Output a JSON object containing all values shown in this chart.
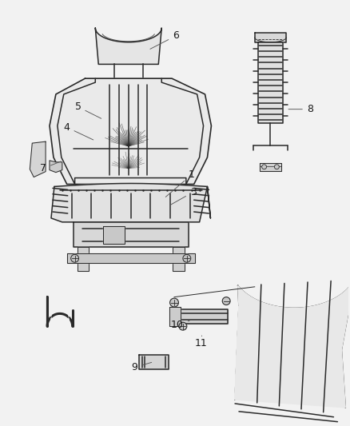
{
  "bg_color": "#f2f2f2",
  "line_color": "#2a2a2a",
  "label_color": "#1a1a1a",
  "figsize": [
    4.39,
    5.33
  ],
  "dpi": 100
}
